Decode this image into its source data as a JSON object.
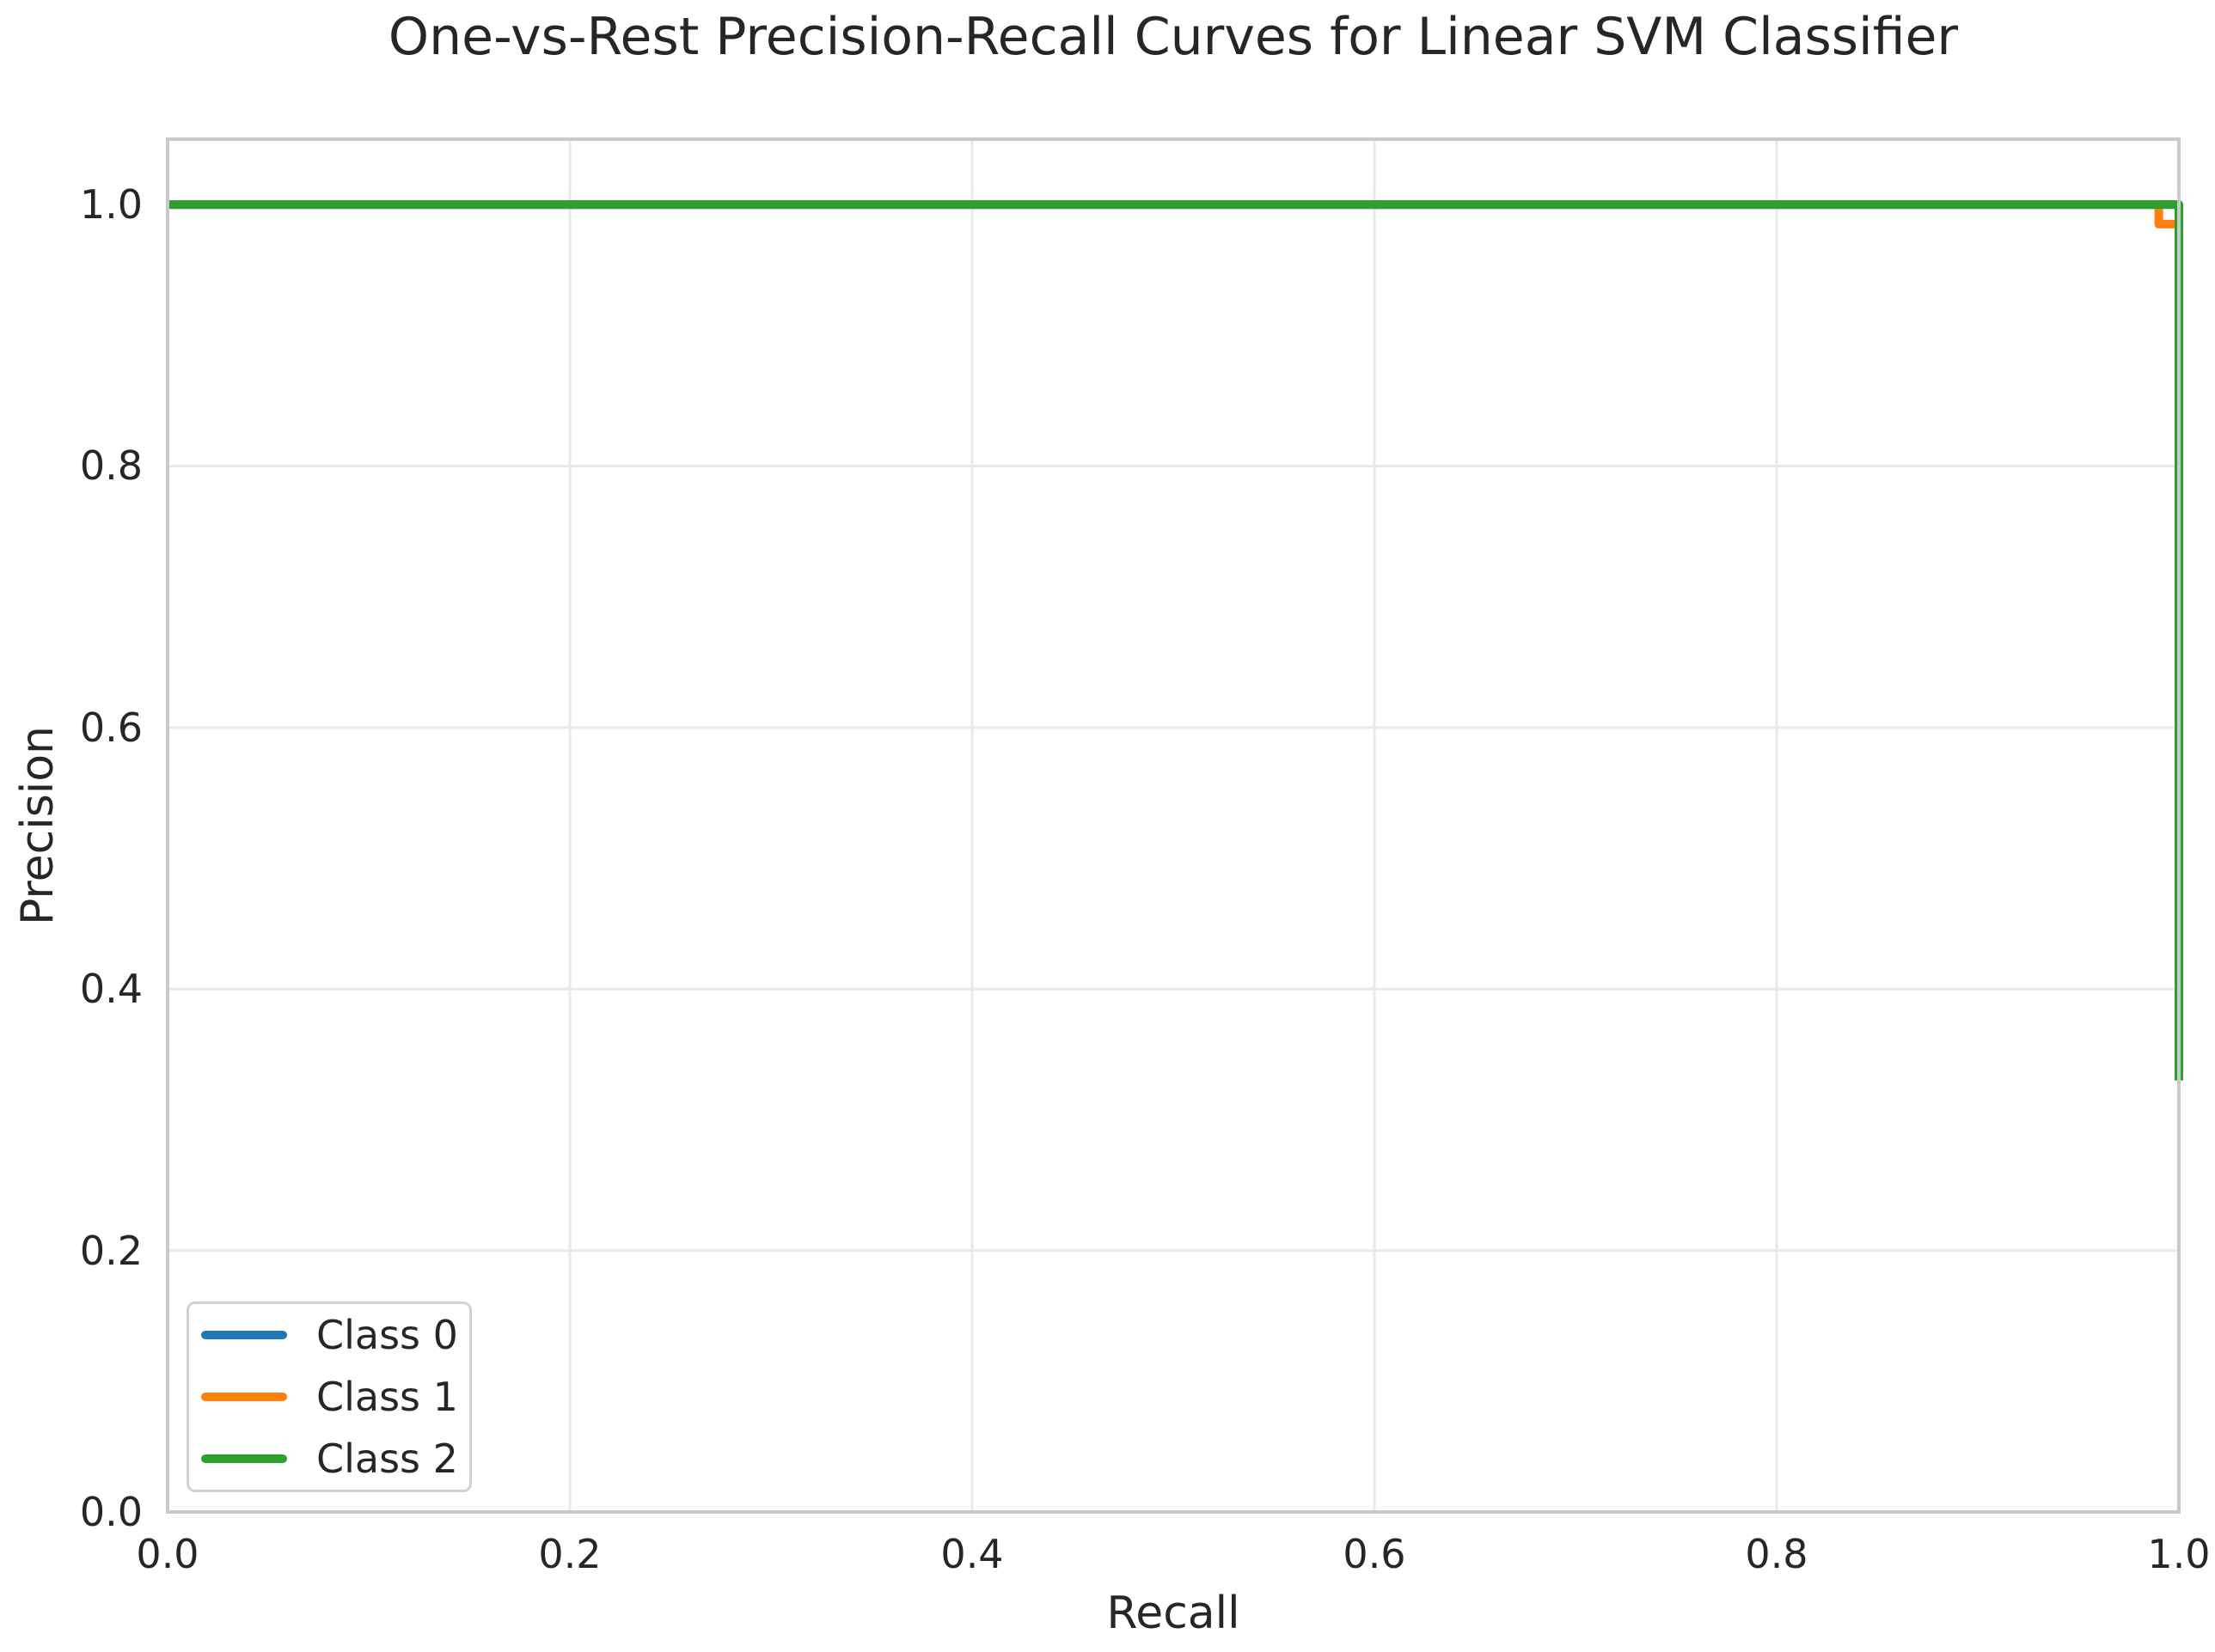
{
  "figure": {
    "title": "One-vs-Rest Precision-Recall Curves for Linear SVM Classifier"
  },
  "chart_data": {
    "type": "line",
    "title": "One-vs-Rest Precision-Recall Curves for Linear SVM Classifier",
    "xlabel": "Recall",
    "ylabel": "Precision",
    "xlim": [
      0.0,
      1.0
    ],
    "ylim": [
      0.0,
      1.05
    ],
    "x_ticks": [
      "0.0",
      "0.2",
      "0.4",
      "0.6",
      "0.8",
      "1.0"
    ],
    "y_ticks": [
      "0.0",
      "0.2",
      "0.4",
      "0.6",
      "0.8",
      "1.0"
    ],
    "grid": true,
    "legend_position": "lower left",
    "series": [
      {
        "name": "Class 0",
        "color": "#1f77b4",
        "points": [
          [
            0.0,
            1.0
          ],
          [
            1.0,
            1.0
          ]
        ]
      },
      {
        "name": "Class 1",
        "color": "#ff7f0e",
        "points": [
          [
            0.0,
            1.0
          ],
          [
            0.99,
            1.0
          ],
          [
            0.99,
            0.985
          ],
          [
            1.0,
            0.985
          ]
        ]
      },
      {
        "name": "Class 2",
        "color": "#2ca02c",
        "points": [
          [
            0.0,
            1.0
          ],
          [
            1.0,
            1.0
          ],
          [
            1.0,
            0.33
          ]
        ]
      }
    ],
    "style": {
      "grid_color": "#e9e9e9",
      "spine_color": "#c9c9c9",
      "text_color": "#262626",
      "line_width": 10
    }
  },
  "legend": {
    "items": [
      {
        "label": "Class 0"
      },
      {
        "label": "Class 1"
      },
      {
        "label": "Class 2"
      }
    ]
  }
}
